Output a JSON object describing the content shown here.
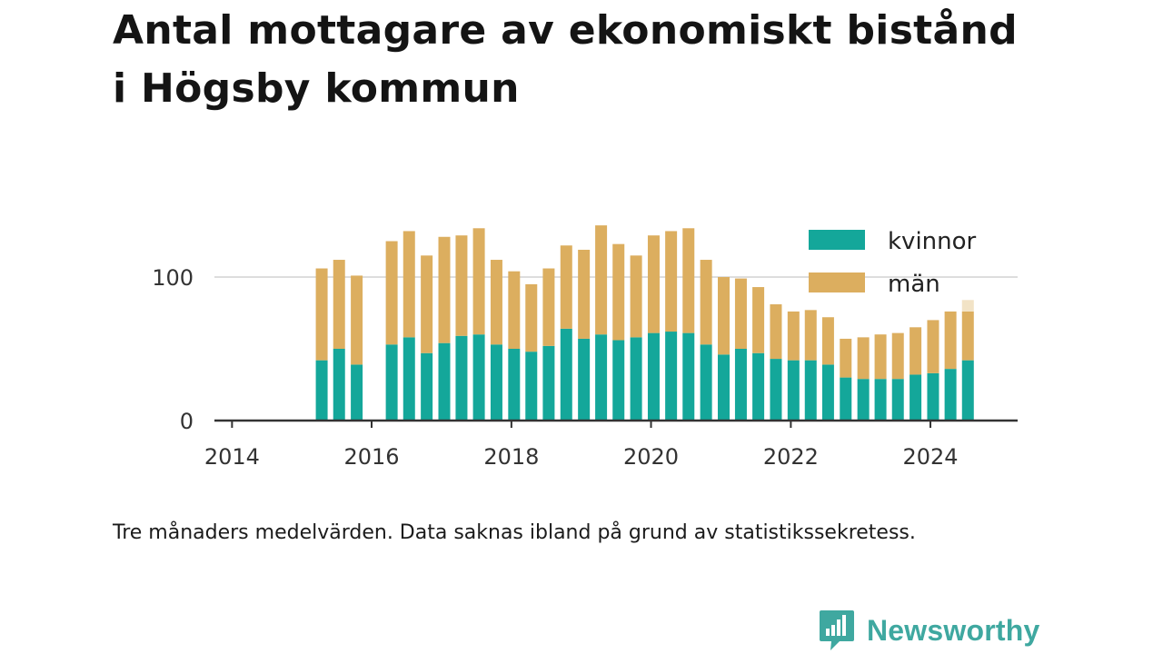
{
  "title": "Antal mottagare av ekonomiskt bistånd i Högsby kommun",
  "footnote": "Tre månaders medelvärden. Data saknas ibland på grund av statistikssekretess.",
  "brand": {
    "name": "Newsworthy",
    "icon": "newsworthy-logo-icon"
  },
  "colors": {
    "kvinnor": "#14a79a",
    "man": "#dcae5f",
    "preliminary": "#f2e3c6",
    "grid": "#dddddd",
    "axis": "#333333"
  },
  "chart_data": {
    "type": "bar",
    "stacked": true,
    "title": "Antal mottagare av ekonomiskt bistånd i Högsby kommun",
    "xlabel": "",
    "ylabel": "",
    "x_axis_type": "date",
    "xlim": [
      "2013-10-01",
      "2025-04-01"
    ],
    "ylim": [
      0,
      135
    ],
    "y_ticks": [
      0,
      100
    ],
    "x_ticks": [
      "2014",
      "2016",
      "2018",
      "2020",
      "2022",
      "2024"
    ],
    "grid": true,
    "legend_position": "top-right",
    "x": [
      "2015-04-15",
      "2015-07-15",
      "2015-10-15",
      "2016-04-15",
      "2016-07-15",
      "2016-10-15",
      "2017-01-15",
      "2017-04-15",
      "2017-07-15",
      "2017-10-15",
      "2018-01-15",
      "2018-04-15",
      "2018-07-15",
      "2018-10-15",
      "2019-01-15",
      "2019-04-15",
      "2019-07-15",
      "2019-10-15",
      "2020-01-15",
      "2020-04-15",
      "2020-07-15",
      "2020-10-15",
      "2021-01-15",
      "2021-04-15",
      "2021-07-15",
      "2021-10-15",
      "2022-01-15",
      "2022-04-15",
      "2022-07-15",
      "2022-10-15",
      "2023-01-15",
      "2023-04-15",
      "2023-07-15",
      "2023-10-15",
      "2024-01-15",
      "2024-04-15",
      "2024-07-15"
    ],
    "series": [
      {
        "name": "kvinnor",
        "values": [
          42,
          50,
          39,
          53,
          58,
          47,
          54,
          59,
          60,
          53,
          50,
          48,
          52,
          64,
          57,
          60,
          56,
          58,
          61,
          62,
          61,
          53,
          46,
          50,
          47,
          43,
          42,
          42,
          39,
          30,
          29,
          29,
          29,
          32,
          33,
          36,
          42
        ]
      },
      {
        "name": "män",
        "values": [
          64,
          62,
          62,
          72,
          74,
          68,
          74,
          70,
          74,
          59,
          54,
          47,
          54,
          58,
          62,
          76,
          67,
          57,
          68,
          70,
          73,
          59,
          54,
          49,
          46,
          38,
          34,
          35,
          33,
          27,
          29,
          31,
          32,
          33,
          37,
          40,
          34
        ]
      }
    ],
    "preliminary_extra": [
      0,
      0,
      0,
      0,
      0,
      0,
      0,
      0,
      0,
      0,
      0,
      0,
      0,
      0,
      0,
      0,
      0,
      0,
      0,
      0,
      0,
      0,
      0,
      0,
      0,
      0,
      0,
      0,
      0,
      0,
      0,
      0,
      0,
      0,
      0,
      0,
      8
    ]
  }
}
